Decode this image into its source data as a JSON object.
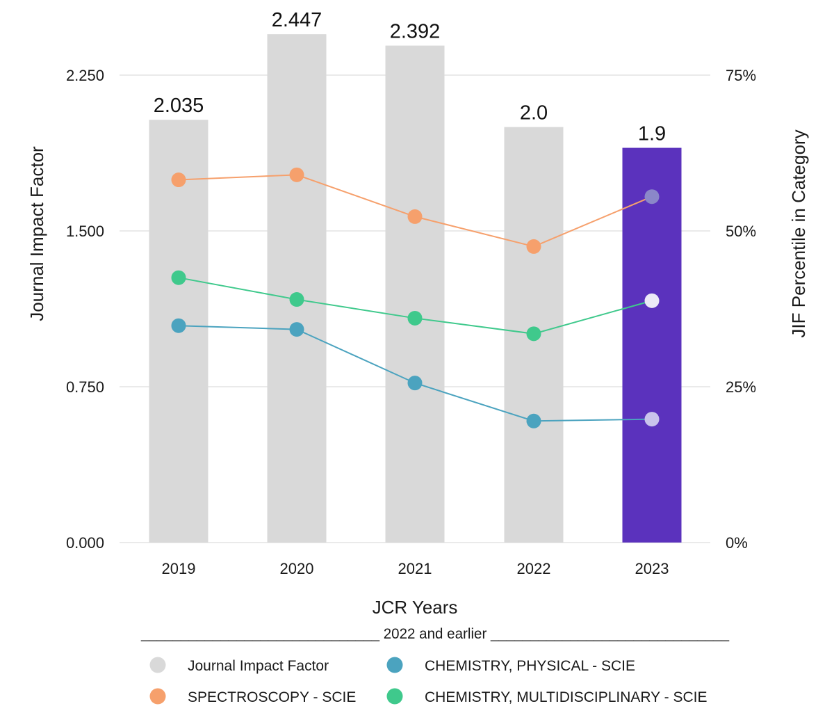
{
  "chart_data": {
    "type": "bar",
    "categories": [
      "2019",
      "2020",
      "2021",
      "2022",
      "2023"
    ],
    "bar_series": {
      "name": "Journal Impact Factor",
      "values": [
        2.035,
        2.447,
        2.392,
        2.0,
        1.9
      ],
      "value_labels": [
        "2.035",
        "2.447",
        "2.392",
        "2.0",
        "1.9"
      ],
      "color": "#d9d9d9",
      "highlight_color": "#5b32bd",
      "highlight_index": 4
    },
    "line_series": [
      {
        "name": "SPECTROSCOPY - SCIE",
        "color": "#f6a06c",
        "values": [
          58.2,
          59.0,
          52.3,
          47.5,
          55.5
        ]
      },
      {
        "name": "CHEMISTRY, MULTIDISCIPLINARY - SCIE",
        "color": "#3fc98c",
        "values": [
          42.5,
          39.0,
          36.0,
          33.5,
          38.8
        ]
      },
      {
        "name": "CHEMISTRY, PHYSICAL - SCIE",
        "color": "#4ba3bf",
        "values": [
          34.8,
          34.2,
          25.6,
          19.5,
          19.8
        ]
      }
    ],
    "latest_point_colors": [
      "#8b87c9",
      "#ece9f7",
      "#c9c3ec"
    ],
    "y_left": {
      "label": "Journal Impact Factor",
      "ylim": [
        0,
        2.25
      ],
      "ticks": [
        0,
        0.75,
        1.5,
        2.25
      ],
      "tick_labels": [
        "0.000",
        "0.750",
        "1.500",
        "2.250"
      ]
    },
    "y_right": {
      "label": "JIF Percentile in Category",
      "ylim": [
        0,
        75
      ],
      "ticks": [
        0,
        25,
        50,
        75
      ],
      "tick_labels": [
        "0%",
        "25%",
        "50%",
        "75%"
      ]
    },
    "xlabel": "JCR Years",
    "grid": true,
    "divider_text": "______________________________ 2022 and earlier ______________________________",
    "legend": {
      "placement": "bottom",
      "items": [
        {
          "label": "Journal Impact Factor",
          "color": "#d9d9d9"
        },
        {
          "label": "CHEMISTRY, PHYSICAL - SCIE",
          "color": "#4ba3bf"
        },
        {
          "label": "SPECTROSCOPY - SCIE",
          "color": "#f6a06c"
        },
        {
          "label": "CHEMISTRY, MULTIDISCIPLINARY - SCIE",
          "color": "#3fc98c"
        }
      ]
    }
  }
}
